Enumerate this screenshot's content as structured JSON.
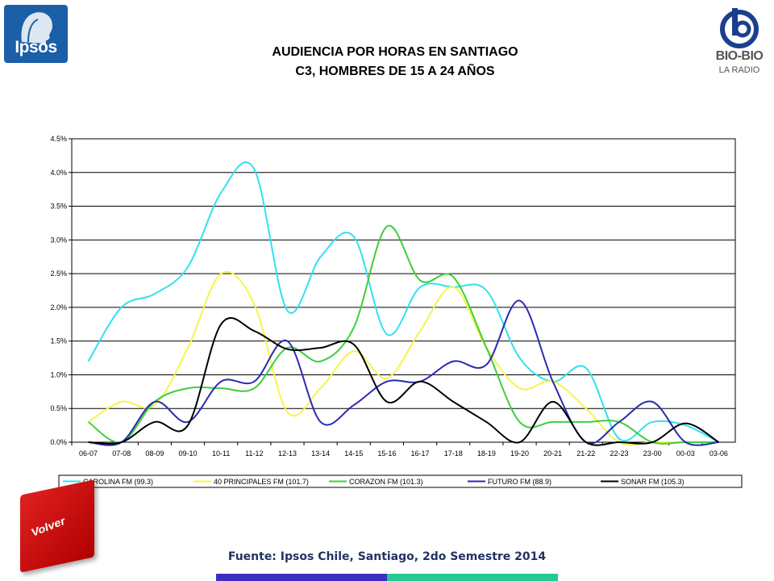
{
  "logos": {
    "left": {
      "name": "ipsos-logo",
      "text": "Ipsos"
    },
    "right": {
      "name": "biobio-logo",
      "text": "BIO-BIO",
      "sub": "LA RADIO"
    }
  },
  "header": {
    "title_line1": "AUDIENCIA POR HORAS EN SANTIAGO",
    "title_line2": "C3, HOMBRES DE 15 A 24 AÑOS"
  },
  "volver_label": "Volver",
  "footer": {
    "source": "Fuente: Ipsos Chile, Santiago, 2do Semestre 2014"
  },
  "colors": {
    "bar_blue": "#3c2fc0",
    "bar_green": "#25c993",
    "volver_red": "#d81818"
  },
  "chart_data": {
    "type": "line",
    "title": "",
    "xlabel": "",
    "ylabel": "",
    "ylim": [
      0,
      4.5
    ],
    "yticks": [
      "0.0%",
      "0.5%",
      "1.0%",
      "1.5%",
      "2.0%",
      "2.5%",
      "3.0%",
      "3.5%",
      "4.0%",
      "4.5%"
    ],
    "grid": true,
    "legend": "bottom",
    "categories": [
      "06-07",
      "07-08",
      "08-09",
      "09-10",
      "10-11",
      "11-12",
      "12-13",
      "13-14",
      "14-15",
      "15-16",
      "16-17",
      "17-18",
      "18-19",
      "19-20",
      "20-21",
      "21-22",
      "22-23",
      "23-00",
      "00-03",
      "03-06"
    ],
    "series": [
      {
        "name": "CAROLINA FM (99.3)",
        "color": "#33e0f0",
        "values": [
          1.2,
          2.0,
          2.2,
          2.6,
          3.7,
          4.05,
          1.95,
          2.75,
          3.05,
          1.6,
          2.3,
          2.3,
          2.25,
          1.25,
          0.9,
          1.1,
          0.05,
          0.3,
          0.25,
          0.0
        ]
      },
      {
        "name": "40 PRINCIPALES FM (101.7)",
        "color": "#f5f54a",
        "values": [
          0.3,
          0.6,
          0.55,
          1.4,
          2.5,
          2.05,
          0.45,
          0.8,
          1.35,
          0.95,
          1.65,
          2.3,
          1.4,
          0.8,
          0.9,
          0.5,
          0.0,
          0.0,
          0.0,
          0.0
        ]
      },
      {
        "name": "CORAZON FM (101.3)",
        "color": "#3ccf3c",
        "values": [
          0.3,
          0.0,
          0.6,
          0.8,
          0.8,
          0.8,
          1.4,
          1.2,
          1.7,
          3.2,
          2.4,
          2.45,
          1.4,
          0.3,
          0.3,
          0.3,
          0.3,
          0.0,
          0.0,
          0.0
        ]
      },
      {
        "name": "FUTURO FM (88.9)",
        "color": "#2a2ab0",
        "values": [
          0.0,
          0.0,
          0.6,
          0.3,
          0.9,
          0.9,
          1.5,
          0.3,
          0.55,
          0.9,
          0.9,
          1.2,
          1.15,
          2.1,
          0.9,
          0.0,
          0.3,
          0.6,
          0.0,
          0.0
        ]
      },
      {
        "name": "SONAR FM (105.3)",
        "color": "#000000",
        "values": [
          0.0,
          0.0,
          0.3,
          0.25,
          1.75,
          1.65,
          1.38,
          1.4,
          1.45,
          0.6,
          0.9,
          0.6,
          0.3,
          0.0,
          0.6,
          0.0,
          0.0,
          0.0,
          0.28,
          0.0
        ]
      }
    ]
  }
}
